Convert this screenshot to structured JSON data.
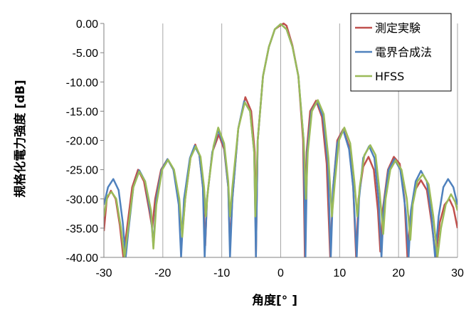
{
  "chart_data": {
    "type": "line",
    "xlabel": "角度[° ]",
    "ylabel": "規格化電力強度 [dB]",
    "xlim": [
      -30,
      30
    ],
    "ylim": [
      -40,
      0
    ],
    "x_ticks": [
      -30,
      -20,
      -10,
      0,
      10,
      20,
      30
    ],
    "x_tick_labels": [
      "-30",
      "-20",
      "-10",
      "0",
      "10",
      "20",
      "30"
    ],
    "y_ticks": [
      0,
      -5,
      -10,
      -15,
      -20,
      -25,
      -30,
      -35,
      -40
    ],
    "y_tick_labels": [
      "0.00",
      "-5.00",
      "-10.00",
      "-15.00",
      "-20.00",
      "-25.00",
      "-30.00",
      "-35.00",
      "-40.00"
    ],
    "grid": "vertical",
    "legend_position": "top-right",
    "series": [
      {
        "name": "測定実験",
        "color": "#c0504d",
        "points": [
          [
            -30,
            -35.5
          ],
          [
            -29.5,
            -30
          ],
          [
            -28.8,
            -28.6
          ],
          [
            -28,
            -30
          ],
          [
            -27.3,
            -34.5
          ],
          [
            -26.7,
            -40
          ],
          [
            -26.2,
            -36
          ],
          [
            -25.2,
            -28
          ],
          [
            -24.2,
            -25.0
          ],
          [
            -23.2,
            -27
          ],
          [
            -22.3,
            -32
          ],
          [
            -21.8,
            -35
          ],
          [
            -21.3,
            -30
          ],
          [
            -20.3,
            -25
          ],
          [
            -19.2,
            -23.2
          ],
          [
            -18.2,
            -25
          ],
          [
            -17.3,
            -30
          ],
          [
            -16.7,
            -36
          ],
          [
            -16.2,
            -30
          ],
          [
            -15.3,
            -23
          ],
          [
            -14.5,
            -20.7
          ],
          [
            -13.8,
            -22.5
          ],
          [
            -13.2,
            -28
          ],
          [
            -12.8,
            -38
          ],
          [
            -12.5,
            -30
          ],
          [
            -11.6,
            -22
          ],
          [
            -10.5,
            -19.0
          ],
          [
            -9.6,
            -21.5
          ],
          [
            -8.9,
            -28
          ],
          [
            -8.6,
            -38
          ],
          [
            -8.2,
            -30
          ],
          [
            -7.2,
            -18
          ],
          [
            -6.0,
            -12.6
          ],
          [
            -5.0,
            -15
          ],
          [
            -4.4,
            -22
          ],
          [
            -4.2,
            -40
          ],
          [
            -3.9,
            -20
          ],
          [
            -3.0,
            -9
          ],
          [
            -2.0,
            -4
          ],
          [
            -1.0,
            -1
          ],
          [
            0.0,
            -0.3
          ],
          [
            0.5,
            0
          ],
          [
            1.0,
            -0.4
          ],
          [
            2.0,
            -3.8
          ],
          [
            3.0,
            -9
          ],
          [
            3.8,
            -20
          ],
          [
            4.1,
            -40
          ],
          [
            4.4,
            -22
          ],
          [
            5.0,
            -15
          ],
          [
            6.0,
            -13.2
          ],
          [
            7.0,
            -16
          ],
          [
            7.8,
            -24
          ],
          [
            8.4,
            -40
          ],
          [
            8.9,
            -28
          ],
          [
            9.6,
            -20
          ],
          [
            10.6,
            -18.1
          ],
          [
            11.6,
            -21
          ],
          [
            12.3,
            -28
          ],
          [
            12.8,
            -40
          ],
          [
            13.2,
            -30
          ],
          [
            14.0,
            -24.5
          ],
          [
            14.9,
            -22.8
          ],
          [
            15.8,
            -25
          ],
          [
            16.5,
            -32
          ],
          [
            16.9,
            -39
          ],
          [
            17.3,
            -32
          ],
          [
            18.2,
            -25
          ],
          [
            19.2,
            -22.8
          ],
          [
            20.2,
            -24
          ],
          [
            21.0,
            -30
          ],
          [
            21.5,
            -40
          ],
          [
            22.0,
            -33
          ],
          [
            22.8,
            -28.5
          ],
          [
            23.8,
            -26.8
          ],
          [
            24.8,
            -28.5
          ],
          [
            25.6,
            -34
          ],
          [
            26.3,
            -40
          ],
          [
            27.0,
            -34
          ],
          [
            27.8,
            -31
          ],
          [
            28.6,
            -30
          ],
          [
            29.3,
            -31.5
          ],
          [
            30,
            -35
          ]
        ]
      },
      {
        "name": "電界合成法",
        "color": "#4f81bd",
        "points": [
          [
            -30,
            -31
          ],
          [
            -29.3,
            -28
          ],
          [
            -28.4,
            -26.6
          ],
          [
            -27.5,
            -28.5
          ],
          [
            -26.8,
            -34
          ],
          [
            -26.3,
            -40
          ],
          [
            -25.9,
            -36
          ],
          [
            -25.0,
            -28
          ],
          [
            -24.0,
            -25.1
          ],
          [
            -23.0,
            -27
          ],
          [
            -22.0,
            -33
          ],
          [
            -21.6,
            -38
          ],
          [
            -21.1,
            -30
          ],
          [
            -20.2,
            -25
          ],
          [
            -19.2,
            -23.2
          ],
          [
            -18.2,
            -25
          ],
          [
            -17.3,
            -31
          ],
          [
            -16.9,
            -40
          ],
          [
            -16.4,
            -30
          ],
          [
            -15.4,
            -23
          ],
          [
            -14.6,
            -20.9
          ],
          [
            -13.8,
            -22.5
          ],
          [
            -13.2,
            -28
          ],
          [
            -12.9,
            -40
          ],
          [
            -12.5,
            -30
          ],
          [
            -11.6,
            -22
          ],
          [
            -10.6,
            -18.2
          ],
          [
            -9.6,
            -21
          ],
          [
            -8.9,
            -28
          ],
          [
            -8.6,
            -40
          ],
          [
            -8.2,
            -30
          ],
          [
            -7.2,
            -18
          ],
          [
            -6.2,
            -13.3
          ],
          [
            -5.2,
            -15
          ],
          [
            -4.5,
            -22
          ],
          [
            -4.2,
            -40
          ],
          [
            -3.9,
            -20
          ],
          [
            -3.0,
            -9
          ],
          [
            -2.0,
            -4
          ],
          [
            -1.0,
            -1
          ],
          [
            0.0,
            -0.1
          ],
          [
            1.0,
            -1
          ],
          [
            2.0,
            -4
          ],
          [
            3.0,
            -9
          ],
          [
            3.9,
            -20
          ],
          [
            4.2,
            -40
          ],
          [
            4.5,
            -22
          ],
          [
            5.2,
            -15
          ],
          [
            6.2,
            -13.3
          ],
          [
            7.2,
            -16
          ],
          [
            8.0,
            -24
          ],
          [
            8.5,
            -40
          ],
          [
            8.9,
            -28
          ],
          [
            9.6,
            -20.5
          ],
          [
            10.6,
            -18.2
          ],
          [
            11.6,
            -21.5
          ],
          [
            12.3,
            -28
          ],
          [
            12.9,
            -40
          ],
          [
            13.3,
            -30
          ],
          [
            14.0,
            -23
          ],
          [
            15.0,
            -21.0
          ],
          [
            15.9,
            -23
          ],
          [
            16.6,
            -30
          ],
          [
            17.1,
            -40
          ],
          [
            17.5,
            -31
          ],
          [
            18.3,
            -25
          ],
          [
            19.3,
            -23.2
          ],
          [
            20.3,
            -25
          ],
          [
            21.2,
            -32
          ],
          [
            21.7,
            -40
          ],
          [
            22.1,
            -32
          ],
          [
            22.9,
            -27
          ],
          [
            23.8,
            -25.2
          ],
          [
            24.8,
            -27
          ],
          [
            25.6,
            -33
          ],
          [
            26.2,
            -40
          ],
          [
            26.8,
            -33
          ],
          [
            27.6,
            -28
          ],
          [
            28.4,
            -26.6
          ],
          [
            29.3,
            -28
          ],
          [
            30,
            -31
          ]
        ]
      },
      {
        "name": "HFSS",
        "color": "#9bbb59",
        "points": [
          [
            -30,
            -33
          ],
          [
            -29.4,
            -29.5
          ],
          [
            -28.7,
            -28.8
          ],
          [
            -27.9,
            -30
          ],
          [
            -27.1,
            -35
          ],
          [
            -26.5,
            -40
          ],
          [
            -26.0,
            -36
          ],
          [
            -25.0,
            -28
          ],
          [
            -24.0,
            -25.3
          ],
          [
            -23.0,
            -27
          ],
          [
            -22.0,
            -32
          ],
          [
            -21.6,
            -38.5
          ],
          [
            -21.1,
            -31
          ],
          [
            -20.1,
            -25
          ],
          [
            -19.1,
            -23.3
          ],
          [
            -18.1,
            -25
          ],
          [
            -17.2,
            -30
          ],
          [
            -16.7,
            -36.5
          ],
          [
            -16.2,
            -30
          ],
          [
            -15.3,
            -23
          ],
          [
            -14.4,
            -21.0
          ],
          [
            -13.6,
            -22.8
          ],
          [
            -13.0,
            -28
          ],
          [
            -12.7,
            -33
          ],
          [
            -12.3,
            -28
          ],
          [
            -11.4,
            -21
          ],
          [
            -10.6,
            -17.8
          ],
          [
            -9.6,
            -20.5
          ],
          [
            -8.9,
            -27
          ],
          [
            -8.6,
            -33
          ],
          [
            -8.2,
            -28
          ],
          [
            -7.2,
            -18
          ],
          [
            -6.1,
            -13.5
          ],
          [
            -5.2,
            -15
          ],
          [
            -4.5,
            -22
          ],
          [
            -4.3,
            -33
          ],
          [
            -3.9,
            -20
          ],
          [
            -3.0,
            -9
          ],
          [
            -2.0,
            -4
          ],
          [
            -1.0,
            -1
          ],
          [
            0.0,
            -0.1
          ],
          [
            1.0,
            -1
          ],
          [
            2.0,
            -4
          ],
          [
            3.0,
            -9
          ],
          [
            3.9,
            -20
          ],
          [
            4.3,
            -30
          ],
          [
            4.6,
            -22
          ],
          [
            5.3,
            -15
          ],
          [
            6.3,
            -13.1
          ],
          [
            7.3,
            -15.5
          ],
          [
            8.1,
            -23
          ],
          [
            8.7,
            -33
          ],
          [
            9.2,
            -27
          ],
          [
            9.9,
            -20
          ],
          [
            10.8,
            -17.8
          ],
          [
            11.8,
            -20.5
          ],
          [
            12.5,
            -27
          ],
          [
            13.0,
            -33
          ],
          [
            13.4,
            -28
          ],
          [
            14.2,
            -22.5
          ],
          [
            15.2,
            -20.8
          ],
          [
            16.1,
            -22.5
          ],
          [
            16.8,
            -29
          ],
          [
            17.4,
            -36
          ],
          [
            17.8,
            -30
          ],
          [
            18.6,
            -25
          ],
          [
            19.5,
            -23.4
          ],
          [
            20.5,
            -25
          ],
          [
            21.4,
            -30
          ],
          [
            22.0,
            -37
          ],
          [
            22.4,
            -31
          ],
          [
            23.2,
            -27
          ],
          [
            24.1,
            -25.8
          ],
          [
            25.1,
            -27.5
          ],
          [
            25.9,
            -33
          ],
          [
            26.6,
            -40
          ],
          [
            27.2,
            -35
          ],
          [
            28.0,
            -31
          ],
          [
            28.9,
            -29.2
          ],
          [
            29.6,
            -30.5
          ],
          [
            30,
            -32
          ]
        ]
      }
    ]
  }
}
